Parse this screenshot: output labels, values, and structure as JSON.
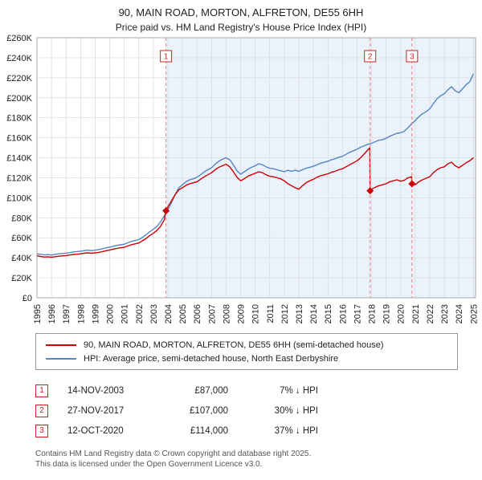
{
  "page": {
    "title": "90, MAIN ROAD, MORTON, ALFRETON, DE55 6HH",
    "subtitle": "Price paid vs. HM Land Registry's House Price Index (HPI)"
  },
  "chart_data": {
    "type": "line",
    "unit": "GBP thousands",
    "xlim": [
      1995,
      2025.15
    ],
    "ylim": [
      0,
      260
    ],
    "ytick": 20,
    "grid": true,
    "legend_position": "bottom",
    "ytick_labels": [
      "£0",
      "£20K",
      "£40K",
      "£60K",
      "£80K",
      "£100K",
      "£120K",
      "£140K",
      "£160K",
      "£180K",
      "£200K",
      "£220K",
      "£240K",
      "£260K"
    ],
    "xtick_labels": [
      "1995",
      "1996",
      "1997",
      "1998",
      "1999",
      "2000",
      "2001",
      "2002",
      "2003",
      "2004",
      "2005",
      "2006",
      "2007",
      "2008",
      "2009",
      "2010",
      "2011",
      "2012",
      "2013",
      "2014",
      "2015",
      "2016",
      "2017",
      "2018",
      "2019",
      "2020",
      "2021",
      "2022",
      "2023",
      "2024",
      "2025"
    ],
    "bands": [
      {
        "x1": 2003.87,
        "x2": 2017.9,
        "color": "#eaf2fb"
      },
      {
        "x1": 2017.9,
        "x2": 2020.78,
        "color": "#eaf2fb"
      },
      {
        "x1": 2020.78,
        "x2": 2025.15,
        "color": "#eaf2fb"
      }
    ],
    "marker_line_color": "#e57f7f",
    "series": [
      {
        "name": "90, MAIN ROAD, MORTON, ALFRETON, DE55 6HH (semi-detached house)",
        "color": "#cc0000",
        "points": [
          [
            1995,
            42
          ],
          [
            1995.25,
            41.3
          ],
          [
            1995.5,
            40.8
          ],
          [
            1995.75,
            41
          ],
          [
            1996,
            40.6
          ],
          [
            1996.25,
            41.1
          ],
          [
            1996.5,
            41.6
          ],
          [
            1996.75,
            41.9
          ],
          [
            1997,
            42.2
          ],
          [
            1997.25,
            42.8
          ],
          [
            1997.5,
            43.3
          ],
          [
            1997.75,
            43.6
          ],
          [
            1998,
            44
          ],
          [
            1998.25,
            44.5
          ],
          [
            1998.5,
            44.9
          ],
          [
            1998.75,
            44.5
          ],
          [
            1999,
            44.9
          ],
          [
            1999.25,
            45.4
          ],
          [
            1999.5,
            46.2
          ],
          [
            1999.75,
            47.1
          ],
          [
            2000,
            47.7
          ],
          [
            2000.25,
            48.6
          ],
          [
            2000.5,
            49.4
          ],
          [
            2000.75,
            50
          ],
          [
            2001,
            50.5
          ],
          [
            2001.25,
            51.8
          ],
          [
            2001.5,
            53.1
          ],
          [
            2001.75,
            53.9
          ],
          [
            2002,
            54.8
          ],
          [
            2002.25,
            57
          ],
          [
            2002.5,
            59.3
          ],
          [
            2002.75,
            62.1
          ],
          [
            2003,
            64.5
          ],
          [
            2003.25,
            67.3
          ],
          [
            2003.5,
            71.5
          ],
          [
            2003.75,
            78
          ],
          [
            2003.87,
            87
          ],
          [
            2004,
            91
          ],
          [
            2004.25,
            97
          ],
          [
            2004.5,
            103
          ],
          [
            2004.75,
            108
          ],
          [
            2005,
            110
          ],
          [
            2005.25,
            112.5
          ],
          [
            2005.5,
            114
          ],
          [
            2005.75,
            115
          ],
          [
            2006,
            116
          ],
          [
            2006.25,
            118.5
          ],
          [
            2006.5,
            121
          ],
          [
            2006.75,
            123
          ],
          [
            2007,
            125
          ],
          [
            2007.25,
            128
          ],
          [
            2007.5,
            130.5
          ],
          [
            2007.75,
            132
          ],
          [
            2008,
            133.5
          ],
          [
            2008.25,
            131
          ],
          [
            2008.5,
            126
          ],
          [
            2008.75,
            120.5
          ],
          [
            2009,
            117
          ],
          [
            2009.25,
            119
          ],
          [
            2009.5,
            121.5
          ],
          [
            2009.75,
            123
          ],
          [
            2010,
            124.5
          ],
          [
            2010.25,
            126
          ],
          [
            2010.5,
            125
          ],
          [
            2010.75,
            123
          ],
          [
            2011,
            121.5
          ],
          [
            2011.25,
            121
          ],
          [
            2011.5,
            120
          ],
          [
            2011.75,
            119
          ],
          [
            2012,
            117
          ],
          [
            2012.25,
            114
          ],
          [
            2012.5,
            112
          ],
          [
            2012.75,
            110
          ],
          [
            2013,
            108.5
          ],
          [
            2013.25,
            112
          ],
          [
            2013.5,
            115
          ],
          [
            2013.75,
            117
          ],
          [
            2014,
            118.5
          ],
          [
            2014.25,
            120.5
          ],
          [
            2014.5,
            122
          ],
          [
            2014.75,
            123
          ],
          [
            2015,
            124
          ],
          [
            2015.25,
            125.5
          ],
          [
            2015.5,
            126.5
          ],
          [
            2015.75,
            128
          ],
          [
            2016,
            129
          ],
          [
            2016.25,
            131
          ],
          [
            2016.5,
            133
          ],
          [
            2016.75,
            135
          ],
          [
            2017,
            137
          ],
          [
            2017.25,
            140
          ],
          [
            2017.5,
            144
          ],
          [
            2017.75,
            148
          ],
          [
            2017.88,
            150
          ],
          [
            2017.9,
            107
          ],
          [
            2018,
            108.5
          ],
          [
            2018.25,
            110.5
          ],
          [
            2018.5,
            112
          ],
          [
            2018.75,
            113
          ],
          [
            2019,
            114
          ],
          [
            2019.25,
            116
          ],
          [
            2019.5,
            117
          ],
          [
            2019.75,
            118
          ],
          [
            2020,
            116.5
          ],
          [
            2020.25,
            117.5
          ],
          [
            2020.5,
            120
          ],
          [
            2020.75,
            121
          ],
          [
            2020.78,
            114
          ],
          [
            2021,
            113
          ],
          [
            2021.25,
            116
          ],
          [
            2021.5,
            118
          ],
          [
            2021.75,
            119.5
          ],
          [
            2022,
            121
          ],
          [
            2022.25,
            125
          ],
          [
            2022.5,
            128
          ],
          [
            2022.75,
            130
          ],
          [
            2023,
            131
          ],
          [
            2023.25,
            134
          ],
          [
            2023.5,
            135.5
          ],
          [
            2023.75,
            132
          ],
          [
            2024,
            130
          ],
          [
            2024.25,
            132.5
          ],
          [
            2024.5,
            135
          ],
          [
            2024.75,
            137
          ],
          [
            2025,
            140
          ]
        ]
      },
      {
        "name": "HPI: Average price, semi-detached house, North East Derbyshire",
        "color": "#5585c0",
        "x_start": 1995,
        "x_step": 0.25,
        "values": [
          44,
          43.5,
          43,
          43.2,
          42.8,
          43.4,
          44,
          44.3,
          44.6,
          45.2,
          45.8,
          46.2,
          46.6,
          47.2,
          47.6,
          47.2,
          47.6,
          48.2,
          49,
          50,
          50.6,
          51.6,
          52.4,
          53,
          53.6,
          55,
          56.4,
          57.2,
          58.2,
          60.5,
          63,
          66,
          68.5,
          71.5,
          76,
          82,
          88,
          95,
          103,
          110,
          113,
          116,
          118,
          119,
          120.5,
          123,
          126,
          128,
          130,
          133.5,
          136.5,
          138.5,
          140,
          138,
          133,
          127,
          123.5,
          126,
          128.5,
          130.5,
          132,
          134,
          133,
          131,
          129.5,
          129,
          128,
          127,
          126,
          127.5,
          126.5,
          127.5,
          126.5,
          128,
          129.5,
          130.5,
          131.5,
          133,
          134.5,
          135.5,
          136.5,
          138,
          139,
          140.5,
          141.5,
          143.5,
          145.5,
          147,
          148.5,
          150.5,
          152,
          153.5,
          154.5,
          156,
          157.5,
          158,
          159.5,
          161.5,
          163,
          164.5,
          165,
          166.5,
          170,
          174,
          177,
          181,
          184,
          186,
          189,
          194,
          199,
          202,
          204,
          208,
          211,
          207,
          205,
          209,
          213,
          216,
          224
        ]
      }
    ],
    "sale_markers": [
      {
        "num": "1",
        "x": 2003.87,
        "y": 87
      },
      {
        "num": "2",
        "x": 2017.9,
        "y": 107
      },
      {
        "num": "3",
        "x": 2020.78,
        "y": 114
      }
    ]
  },
  "legend": {
    "entries": [
      {
        "label": "90, MAIN ROAD, MORTON, ALFRETON, DE55 6HH (semi-detached house)"
      },
      {
        "label": "HPI: Average price, semi-detached house, North East Derbyshire"
      }
    ]
  },
  "transactions": [
    {
      "num": "1",
      "date": "14-NOV-2003",
      "price": "£87,000",
      "hpi": "7% ↓ HPI"
    },
    {
      "num": "2",
      "date": "27-NOV-2017",
      "price": "£107,000",
      "hpi": "30% ↓ HPI"
    },
    {
      "num": "3",
      "date": "12-OCT-2020",
      "price": "£114,000",
      "hpi": "37% ↓ HPI"
    }
  ],
  "footer": {
    "line1": "Contains HM Land Registry data © Crown copyright and database right 2025.",
    "line2": "This data is licensed under the Open Government Licence v3.0."
  }
}
